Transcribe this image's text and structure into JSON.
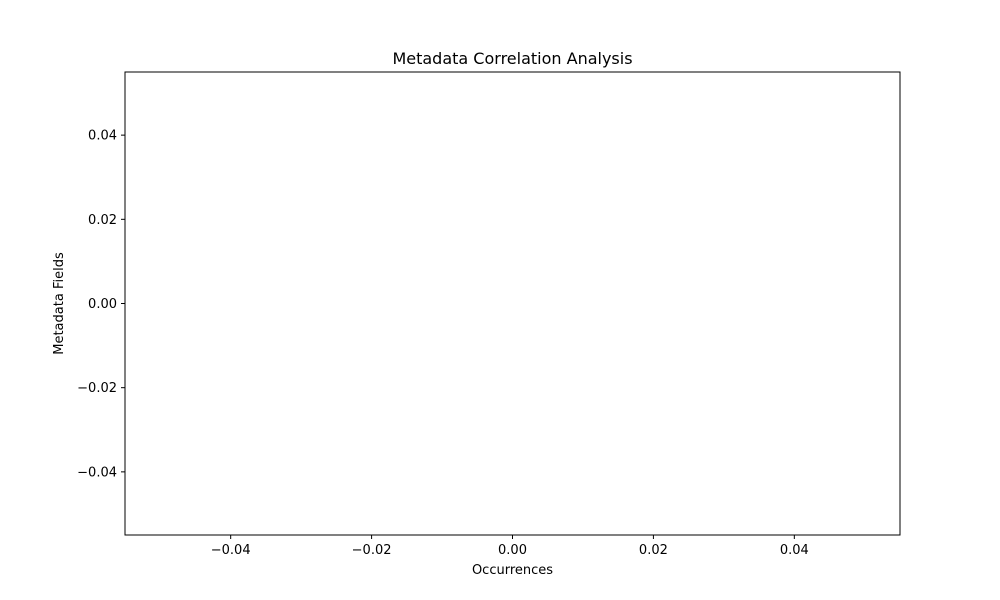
{
  "chart_data": {
    "type": "bar",
    "orientation": "horizontal",
    "title": "Metadata Correlation Analysis",
    "xlabel": "Occurrences",
    "ylabel": "Metadata Fields",
    "categories": [],
    "values": [],
    "xlim": [
      -0.055,
      0.055
    ],
    "ylim": [
      -0.055,
      0.055
    ],
    "x_ticks": [
      -0.04,
      -0.02,
      0.0,
      0.02,
      0.04
    ],
    "y_ticks": [
      -0.04,
      -0.02,
      0.0,
      0.02,
      0.04
    ],
    "x_tick_labels": [
      "−0.04",
      "−0.02",
      "0.00",
      "0.02",
      "0.04"
    ],
    "y_tick_labels": [
      "−0.04",
      "−0.02",
      "0.00",
      "0.02",
      "0.04"
    ],
    "grid": false,
    "legend": "none",
    "colors": {
      "axis": "#000000",
      "background": "#ffffff",
      "text": "#000000"
    }
  }
}
